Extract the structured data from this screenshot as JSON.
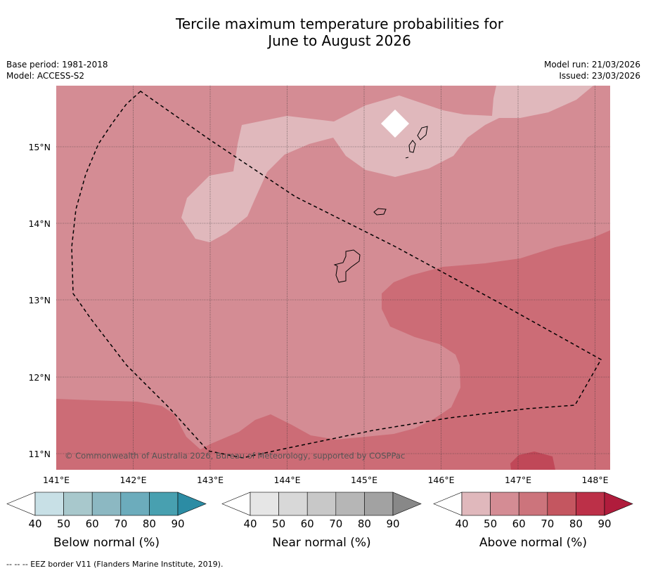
{
  "title": {
    "line1": "Tercile maximum temperature probabilities for",
    "line2": "June to August 2026"
  },
  "meta": {
    "base_period": "Base period: 1981-2018",
    "model": "Model: ACCESS-S2",
    "model_run": "Model run: 21/03/2026",
    "issued": "Issued: 23/03/2026"
  },
  "map": {
    "lat_labels": [
      "15°N",
      "14°N",
      "13°N",
      "12°N",
      "11°N"
    ],
    "lon_labels": [
      "141°E",
      "142°E",
      "143°E",
      "144°E",
      "145°E",
      "146°E",
      "147°E",
      "148°E"
    ],
    "copyright": "© Commonwealth of Australia 2026, Bureau of Meteorology, supported by COSPPac",
    "background_color": "#d48c94"
  },
  "legends": [
    {
      "label": "Below normal (%)",
      "ticks": [
        "40",
        "50",
        "60",
        "70",
        "80",
        "90"
      ],
      "colors": [
        "#ffffff",
        "#c8e0e6",
        "#a8c8cc",
        "#8cb8c2",
        "#6cacbc",
        "#48a0b0",
        "#2c8ca4"
      ]
    },
    {
      "label": "Near normal (%)",
      "ticks": [
        "40",
        "50",
        "60",
        "70",
        "80",
        "90"
      ],
      "colors": [
        "#ffffff",
        "#e6e6e6",
        "#d8d8d8",
        "#c8c8c8",
        "#b6b6b6",
        "#a2a2a2",
        "#888888"
      ]
    },
    {
      "label": "Above normal (%)",
      "ticks": [
        "40",
        "50",
        "60",
        "70",
        "80",
        "90"
      ],
      "colors": [
        "#ffffff",
        "#e0b8bc",
        "#d48c94",
        "#cc747c",
        "#c45660",
        "#bc3048",
        "#b01c3c"
      ]
    }
  ],
  "footnote": "--  --  -- EEZ border V11 (Flanders Marine Institute, 2019)."
}
